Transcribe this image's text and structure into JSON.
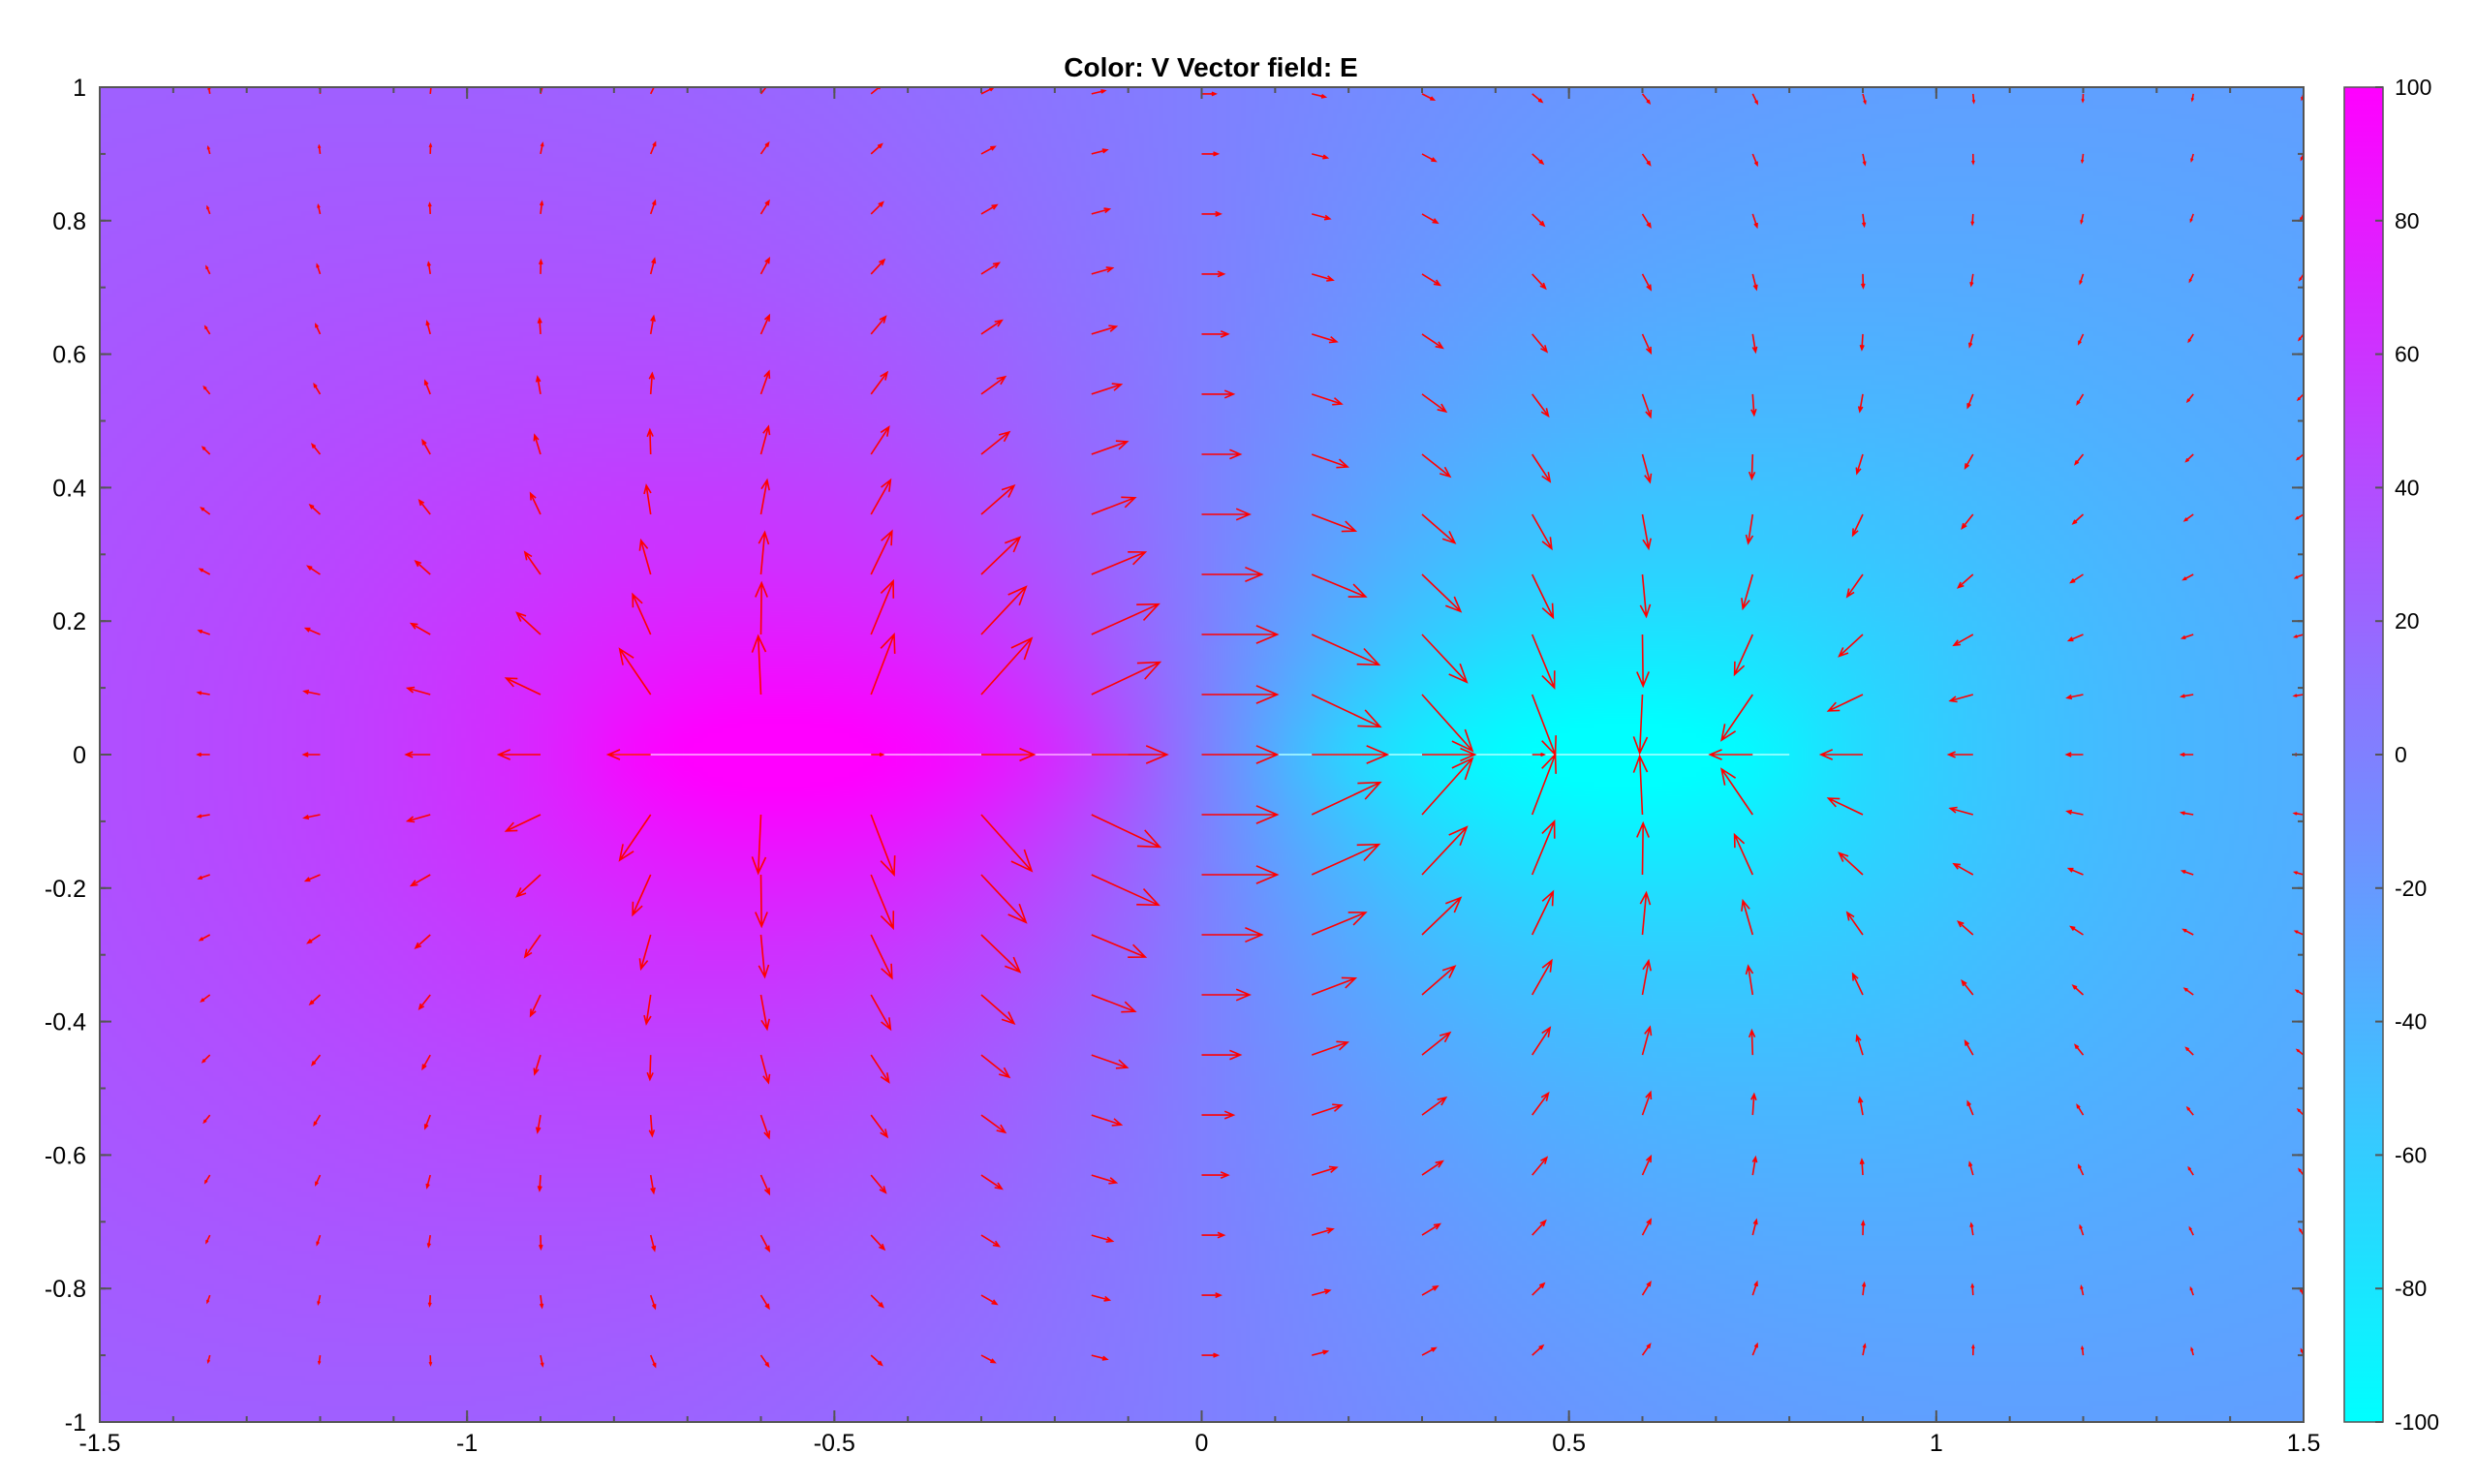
{
  "chart_data": {
    "type": "heatmap",
    "title": "Color: V  Vector field: E",
    "xlabel": "",
    "ylabel": "",
    "xlim": [
      -1.5,
      1.5
    ],
    "ylim": [
      -1,
      1
    ],
    "x_ticks": [
      "-1.5",
      "-1",
      "-0.5",
      "0",
      "0.5",
      "1",
      "1.5"
    ],
    "y_ticks": [
      "1",
      "0.8",
      "0.6",
      "0.4",
      "0.2",
      "0",
      "-0.2",
      "-0.4",
      "-0.6",
      "-0.8",
      "-1"
    ],
    "grid": false,
    "colorbar": {
      "range": [
        -100,
        100
      ],
      "ticks": [
        "100",
        "80",
        "60",
        "40",
        "20",
        "0",
        "-20",
        "-40",
        "-60",
        "-80",
        "-100"
      ],
      "colors": [
        "#00ffff",
        "#ff00ff"
      ]
    },
    "color_field": {
      "quantity": "V",
      "conductors": [
        {
          "x_start": -0.8,
          "x_end": -0.1,
          "y": 0,
          "potential": 100
        },
        {
          "x_start": 0.1,
          "x_end": 0.8,
          "y": 0,
          "potential": -100
        }
      ]
    },
    "vector_field": {
      "quantity": "E",
      "color": "#ff0000",
      "x_range": [
        -1.35,
        1.5
      ],
      "x_step": 0.15,
      "y_range": [
        -0.9,
        1.0
      ],
      "y_step": 0.09
    }
  }
}
